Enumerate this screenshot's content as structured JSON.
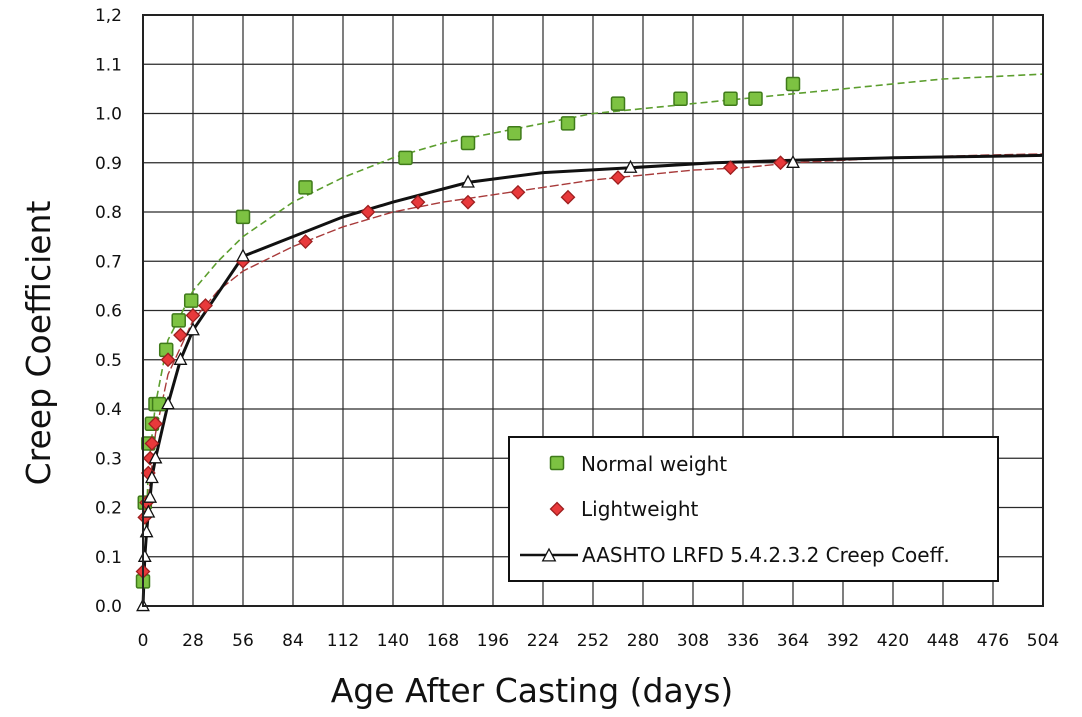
{
  "chart_data": {
    "type": "scatter",
    "title": "",
    "xlabel": "Age After Casting (days)",
    "ylabel": "Creep Coefficient",
    "xlim": [
      0,
      504
    ],
    "ylim": [
      0.0,
      1.2
    ],
    "x_ticks": [
      0,
      28,
      56,
      84,
      112,
      140,
      168,
      196,
      224,
      252,
      280,
      308,
      336,
      364,
      392,
      420,
      448,
      476,
      504
    ],
    "x_tick_labels": [
      "0",
      "28",
      "56",
      "84",
      "112",
      "140",
      "168",
      "196",
      "224",
      "252",
      "280",
      "308",
      "336",
      "364",
      "392",
      "420",
      "448",
      "476",
      "504"
    ],
    "y_ticks": [
      0.0,
      0.1,
      0.2,
      0.3,
      0.4,
      0.5,
      0.6,
      0.7,
      0.8,
      0.9,
      1.0,
      1.1,
      1.2
    ],
    "y_tick_labels": [
      "0.0",
      "0.1",
      "0.2",
      "0.3",
      "0.4",
      "0.5",
      "0.6",
      "0.7",
      "0.8",
      "0.9",
      "1.0",
      "1.1",
      "1,2"
    ],
    "grid": true,
    "legend_position": "bottom-right",
    "series": [
      {
        "name": "Normal weight",
        "marker": "square",
        "color": "#7dc242",
        "edge_color": "#3f7a1a",
        "x": [
          0,
          1,
          3,
          5,
          7,
          9,
          13,
          20,
          27,
          56,
          91,
          147,
          182,
          208,
          238,
          266,
          301,
          329,
          343,
          364
        ],
        "y": [
          0.05,
          0.21,
          0.33,
          0.37,
          0.41,
          0.41,
          0.52,
          0.58,
          0.62,
          0.79,
          0.85,
          0.91,
          0.94,
          0.96,
          0.98,
          1.02,
          1.03,
          1.03,
          1.03,
          1.06
        ],
        "trend_color": "#5c9e2e",
        "trend_x": [
          0,
          3,
          7,
          14,
          28,
          42,
          56,
          84,
          112,
          140,
          168,
          196,
          224,
          252,
          280,
          308,
          336,
          364,
          392,
          420,
          448,
          476,
          504
        ],
        "trend_y": [
          0.0,
          0.28,
          0.41,
          0.54,
          0.64,
          0.7,
          0.75,
          0.82,
          0.87,
          0.91,
          0.94,
          0.96,
          0.98,
          1.0,
          1.01,
          1.02,
          1.03,
          1.04,
          1.05,
          1.06,
          1.07,
          1.075,
          1.08
        ]
      },
      {
        "name": "Lightweight",
        "marker": "diamond",
        "color": "#e8393b",
        "edge_color": "#9c1f1f",
        "x": [
          0,
          1,
          2,
          3,
          4,
          5,
          7,
          14,
          21,
          28,
          35,
          56,
          91,
          126,
          154,
          182,
          210,
          238,
          266,
          329,
          357
        ],
        "y": [
          0.07,
          0.18,
          0.21,
          0.27,
          0.3,
          0.33,
          0.37,
          0.5,
          0.55,
          0.59,
          0.61,
          0.7,
          0.74,
          0.8,
          0.82,
          0.82,
          0.84,
          0.83,
          0.87,
          0.89,
          0.9
        ],
        "trend_color": "#a83a3a",
        "trend_x": [
          0,
          3,
          7,
          14,
          28,
          42,
          56,
          84,
          112,
          140,
          168,
          196,
          224,
          252,
          280,
          308,
          336,
          364,
          392,
          420,
          448,
          476,
          504
        ],
        "trend_y": [
          0.0,
          0.22,
          0.35,
          0.47,
          0.58,
          0.64,
          0.68,
          0.73,
          0.77,
          0.8,
          0.82,
          0.835,
          0.85,
          0.865,
          0.875,
          0.885,
          0.89,
          0.9,
          0.905,
          0.91,
          0.913,
          0.916,
          0.918
        ]
      },
      {
        "name": "AASHTO LRFD 5.4.2.3.2 Creep Coeff.",
        "marker": "triangle",
        "color": "#ffffff",
        "edge_color": "#111111",
        "x": [
          0,
          1,
          2,
          3,
          4,
          5,
          7,
          14,
          21,
          28,
          56,
          182,
          273,
          364
        ],
        "y": [
          0.0,
          0.1,
          0.15,
          0.19,
          0.22,
          0.26,
          0.3,
          0.41,
          0.5,
          0.56,
          0.71,
          0.86,
          0.89,
          0.9
        ],
        "line_x": [
          0,
          1,
          2,
          3,
          4,
          5,
          7,
          14,
          21,
          28,
          56,
          84,
          112,
          140,
          182,
          224,
          273,
          320,
          364,
          420,
          504
        ],
        "line_y": [
          0.0,
          0.1,
          0.15,
          0.19,
          0.22,
          0.26,
          0.3,
          0.41,
          0.5,
          0.56,
          0.71,
          0.75,
          0.79,
          0.82,
          0.86,
          0.88,
          0.89,
          0.9,
          0.905,
          0.91,
          0.915
        ]
      }
    ]
  }
}
